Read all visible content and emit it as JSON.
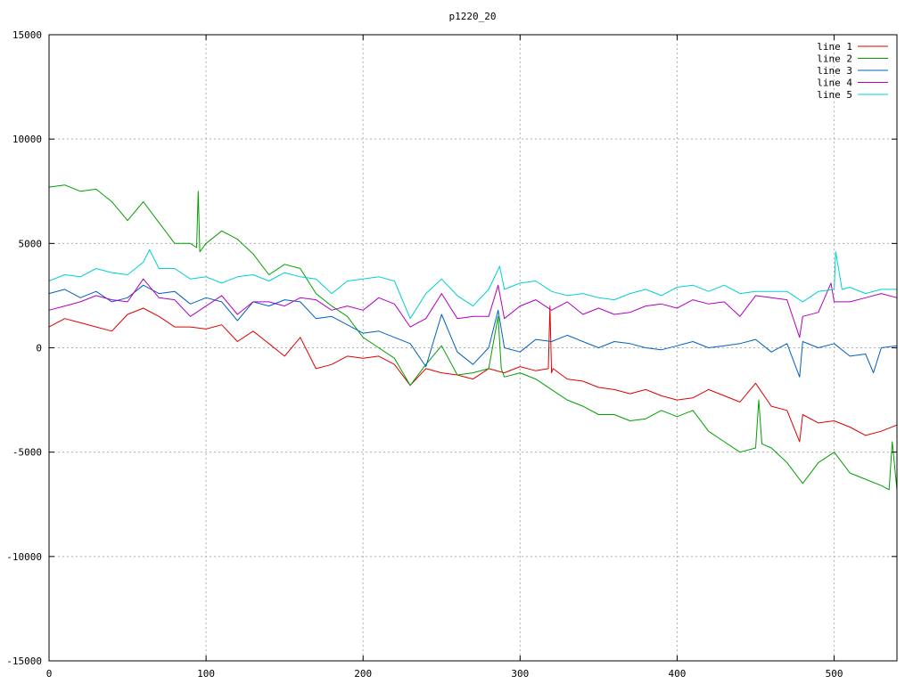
{
  "chart_data": {
    "type": "line",
    "title": "p1220_20",
    "xlabel": "",
    "ylabel": "",
    "xlim": [
      0,
      540
    ],
    "ylim": [
      -15000,
      15000
    ],
    "x_ticks": [
      0,
      100,
      200,
      300,
      400,
      500
    ],
    "y_ticks": [
      -15000,
      -10000,
      -5000,
      0,
      5000,
      10000,
      15000
    ],
    "grid": true,
    "legend_position": "top-right",
    "series": [
      {
        "name": "line 1",
        "color": "#e00000",
        "x": [
          0,
          10,
          20,
          30,
          40,
          50,
          60,
          70,
          80,
          90,
          100,
          110,
          120,
          130,
          140,
          150,
          160,
          170,
          180,
          190,
          200,
          210,
          220,
          230,
          240,
          250,
          260,
          270,
          280,
          290,
          300,
          310,
          318,
          319,
          320,
          321,
          330,
          340,
          350,
          360,
          370,
          380,
          390,
          400,
          410,
          420,
          430,
          440,
          450,
          460,
          470,
          478,
          480,
          490,
          500,
          510,
          520,
          530,
          540
        ],
        "y": [
          1000,
          1400,
          1200,
          1000,
          800,
          1600,
          1900,
          1500,
          1000,
          1000,
          900,
          1100,
          300,
          800,
          200,
          -400,
          500,
          -1000,
          -800,
          -400,
          -500,
          -400,
          -800,
          -1800,
          -1000,
          -1200,
          -1300,
          -1500,
          -1000,
          -1200,
          -900,
          -1100,
          -1000,
          2000,
          -1200,
          -1000,
          -1500,
          -1600,
          -1900,
          -2000,
          -2200,
          -2000,
          -2300,
          -2500,
          -2400,
          -2000,
          -2300,
          -2600,
          -1700,
          -2800,
          -3000,
          -4500,
          -3200,
          -3600,
          -3500,
          -3800,
          -4200,
          -4000,
          -3700
        ]
      },
      {
        "name": "line 2",
        "color": "#00a000",
        "x": [
          0,
          10,
          20,
          30,
          40,
          50,
          60,
          70,
          80,
          90,
          94,
          95,
          96,
          100,
          110,
          120,
          130,
          140,
          150,
          160,
          170,
          180,
          190,
          200,
          210,
          220,
          230,
          240,
          250,
          260,
          270,
          280,
          286,
          288,
          290,
          300,
          310,
          320,
          330,
          340,
          350,
          360,
          370,
          380,
          390,
          400,
          410,
          420,
          430,
          440,
          450,
          452,
          454,
          460,
          470,
          480,
          490,
          500,
          510,
          520,
          530,
          535,
          537,
          540
        ],
        "y": [
          7700,
          7800,
          7500,
          7600,
          7000,
          6100,
          7000,
          6000,
          5000,
          5000,
          4800,
          7500,
          4600,
          5000,
          5600,
          5200,
          4500,
          3500,
          4000,
          3800,
          2600,
          2000,
          1500,
          500,
          0,
          -500,
          -1800,
          -800,
          100,
          -1300,
          -1200,
          -1000,
          1500,
          -1000,
          -1400,
          -1200,
          -1500,
          -2000,
          -2500,
          -2800,
          -3200,
          -3200,
          -3500,
          -3400,
          -3000,
          -3300,
          -3000,
          -4000,
          -4500,
          -5000,
          -4800,
          -2500,
          -4600,
          -4800,
          -5500,
          -6500,
          -5500,
          -5000,
          -6000,
          -6300,
          -6600,
          -6800,
          -4500,
          -6800
        ]
      },
      {
        "name": "line 3",
        "color": "#0060c0",
        "x": [
          0,
          10,
          20,
          30,
          40,
          50,
          60,
          70,
          80,
          90,
          100,
          110,
          120,
          130,
          140,
          150,
          160,
          170,
          180,
          190,
          200,
          210,
          220,
          230,
          240,
          250,
          260,
          270,
          280,
          286,
          290,
          300,
          310,
          320,
          330,
          340,
          350,
          360,
          370,
          380,
          390,
          400,
          410,
          420,
          430,
          440,
          450,
          460,
          470,
          478,
          480,
          490,
          500,
          510,
          520,
          525,
          530,
          540
        ],
        "y": [
          2600,
          2800,
          2400,
          2700,
          2200,
          2400,
          3000,
          2600,
          2700,
          2100,
          2400,
          2200,
          1300,
          2200,
          2000,
          2300,
          2200,
          1400,
          1500,
          1100,
          700,
          800,
          500,
          200,
          -900,
          1600,
          -200,
          -800,
          0,
          1800,
          0,
          -200,
          400,
          300,
          600,
          300,
          0,
          300,
          200,
          0,
          -100,
          100,
          300,
          0,
          100,
          200,
          400,
          -200,
          200,
          -1400,
          300,
          0,
          200,
          -400,
          -300,
          -1200,
          0,
          100
        ]
      },
      {
        "name": "line 4",
        "color": "#b000c0",
        "x": [
          0,
          10,
          20,
          30,
          40,
          50,
          60,
          70,
          80,
          90,
          100,
          110,
          120,
          130,
          140,
          150,
          160,
          170,
          180,
          190,
          200,
          210,
          220,
          230,
          240,
          250,
          260,
          270,
          280,
          286,
          290,
          300,
          310,
          320,
          330,
          340,
          350,
          360,
          370,
          380,
          390,
          400,
          410,
          420,
          430,
          440,
          450,
          460,
          470,
          478,
          480,
          490,
          498,
          500,
          510,
          520,
          530,
          540
        ],
        "y": [
          1800,
          2000,
          2200,
          2500,
          2300,
          2200,
          3300,
          2400,
          2300,
          1500,
          2000,
          2500,
          1600,
          2200,
          2200,
          2000,
          2400,
          2300,
          1800,
          2000,
          1800,
          2400,
          2100,
          1000,
          1400,
          2600,
          1400,
          1500,
          1500,
          3000,
          1400,
          2000,
          2300,
          1800,
          2200,
          1600,
          1900,
          1600,
          1700,
          2000,
          2100,
          1900,
          2300,
          2100,
          2200,
          1500,
          2500,
          2400,
          2300,
          500,
          1500,
          1700,
          3100,
          2200,
          2200,
          2400,
          2600,
          2400
        ]
      },
      {
        "name": "line 5",
        "color": "#00d0d0",
        "x": [
          0,
          10,
          20,
          30,
          40,
          50,
          60,
          64,
          70,
          80,
          90,
          100,
          110,
          120,
          130,
          140,
          150,
          160,
          170,
          180,
          190,
          200,
          210,
          220,
          230,
          240,
          250,
          260,
          270,
          280,
          287,
          290,
          300,
          310,
          320,
          330,
          340,
          350,
          360,
          370,
          380,
          390,
          400,
          410,
          420,
          430,
          440,
          450,
          460,
          470,
          480,
          490,
          500,
          501,
          505,
          510,
          520,
          530,
          540
        ],
        "y": [
          3200,
          3500,
          3400,
          3800,
          3600,
          3500,
          4100,
          4700,
          3800,
          3800,
          3300,
          3400,
          3100,
          3400,
          3500,
          3200,
          3600,
          3400,
          3300,
          2600,
          3200,
          3300,
          3400,
          3200,
          1400,
          2600,
          3300,
          2500,
          2000,
          2800,
          3900,
          2800,
          3100,
          3200,
          2700,
          2500,
          2600,
          2400,
          2300,
          2600,
          2800,
          2500,
          2900,
          3000,
          2700,
          3000,
          2600,
          2700,
          2700,
          2700,
          2200,
          2700,
          2800,
          4600,
          2800,
          2900,
          2600,
          2800,
          2800
        ]
      }
    ]
  }
}
